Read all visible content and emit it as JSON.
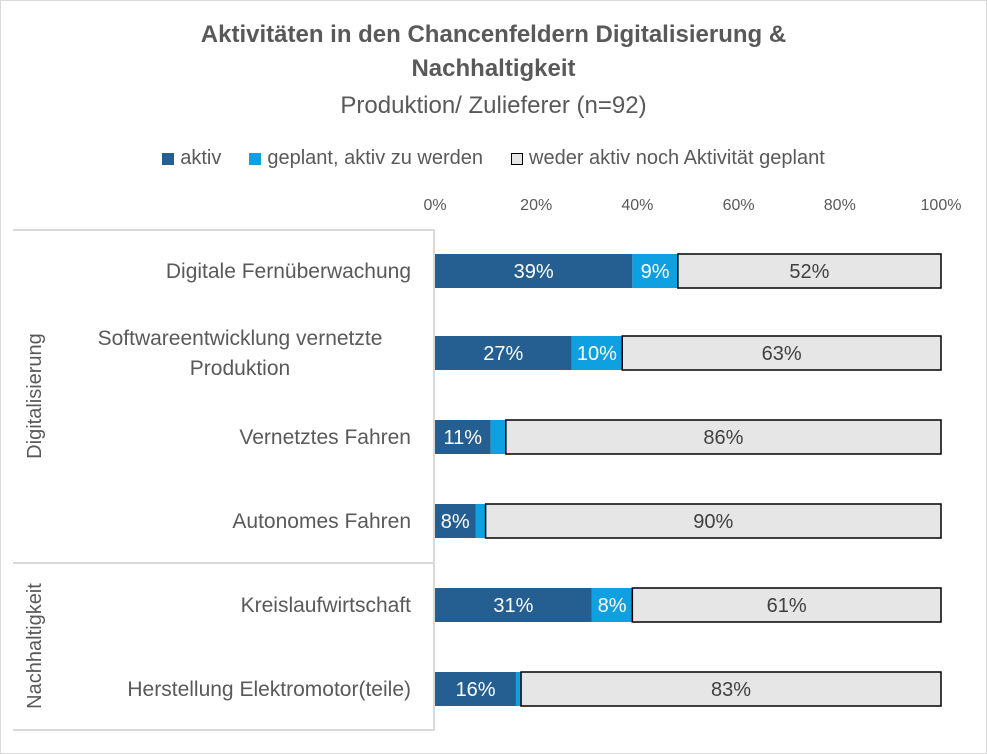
{
  "chart_data": {
    "type": "bar",
    "orientation": "horizontal",
    "stacked": true,
    "title_line1": "Aktivitäten in den Chancenfeldern Digitalisierung &",
    "title_line2": "Nachhaltigkeit",
    "subtitle": "Produktion/ Zulieferer (n=92)",
    "legend_position": "top",
    "xlim": [
      0,
      100
    ],
    "x_ticks": [
      "0%",
      "20%",
      "40%",
      "60%",
      "80%",
      "100%"
    ],
    "groups": [
      {
        "name": "Digitalisierung",
        "categories": [
          "Digitale Fernüberwachung",
          "Softwareentwicklung vernetzte Produktion",
          "Vernetztes Fahren",
          "Autonomes Fahren"
        ]
      },
      {
        "name": "Nachhaltigkeit",
        "categories": [
          "Kreislaufwirtschaft",
          "Herstellung Elektromotor(teile)"
        ]
      }
    ],
    "categories": [
      "Digitale Fernüberwachung",
      "Softwareentwicklung vernetzte Produktion",
      "Vernetztes Fahren",
      "Autonomes Fahren",
      "Kreislaufwirtschaft",
      "Herstellung Elektromotor(teile)"
    ],
    "series": [
      {
        "name": "aktiv",
        "color": "#255e91",
        "values": [
          39,
          27,
          11,
          8,
          31,
          16
        ],
        "labels": [
          "39%",
          "27%",
          "11%",
          "8%",
          "31%",
          "16%"
        ]
      },
      {
        "name": "geplant, aktiv zu werden",
        "color": "#0ea0e0",
        "values": [
          9,
          10,
          3,
          2,
          8,
          1
        ],
        "labels": [
          "9%",
          "10%",
          "",
          "",
          "8%",
          ""
        ]
      },
      {
        "name": "weder aktiv noch Aktivität geplant",
        "color": "#e7e6e6",
        "values": [
          52,
          63,
          86,
          90,
          61,
          83
        ],
        "labels": [
          "52%",
          "63%",
          "86%",
          "90%",
          "61%",
          "83%"
        ]
      }
    ]
  }
}
